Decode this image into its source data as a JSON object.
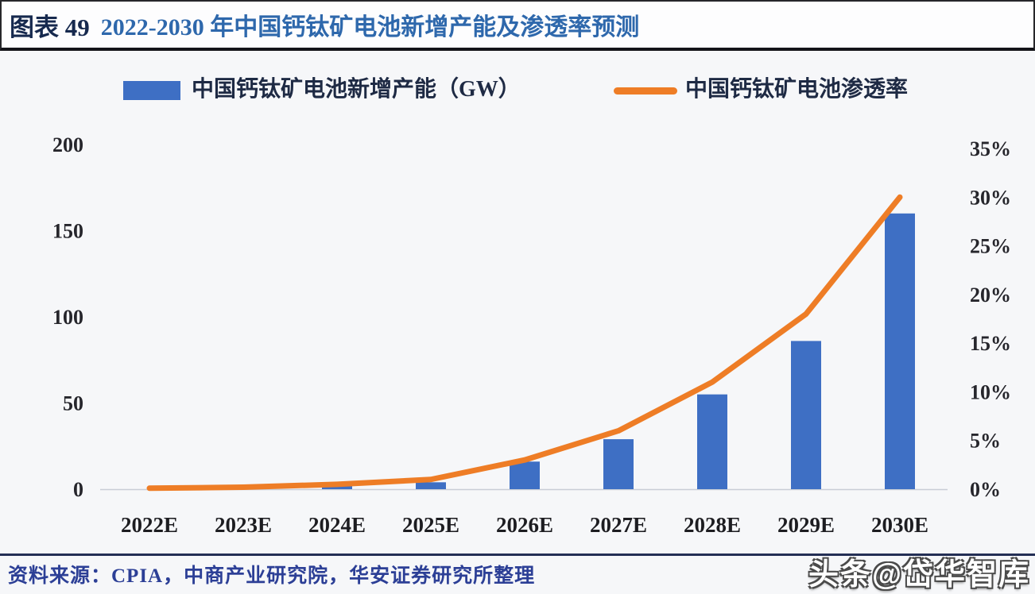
{
  "header": {
    "figure_label": "图表 49",
    "title": "2022-2030 年中国钙钛矿电池新增产能及渗透率预测"
  },
  "legend": {
    "items": [
      {
        "label": "中国钙钛矿电池新增产能（GW）",
        "swatch": "bar",
        "color": "#3E6FC4"
      },
      {
        "label": "中国钙钛矿电池渗透率",
        "swatch": "line",
        "color": "#EE7D26"
      }
    ]
  },
  "chart_data": {
    "type": "bar",
    "subtype": "combo bar+line, dual axis",
    "categories": [
      "2022E",
      "2023E",
      "2024E",
      "2025E",
      "2026E",
      "2027E",
      "2028E",
      "2029E",
      "2030E"
    ],
    "series": [
      {
        "name": "中国钙钛矿电池新增产能（GW）",
        "type": "bar",
        "axis": "left",
        "unit": "GW",
        "color": "#3E6FC4",
        "values": [
          0,
          0,
          2,
          4,
          16,
          29,
          55,
          86,
          160
        ]
      },
      {
        "name": "中国钙钛矿电池渗透率",
        "type": "line",
        "axis": "right",
        "unit": "%",
        "color": "#EE7D26",
        "values": [
          0.1,
          0.2,
          0.5,
          1,
          3,
          6,
          11,
          18,
          30
        ]
      }
    ],
    "left_axis": {
      "min": 0,
      "max": 200,
      "ticks": [
        "0",
        "50",
        "100",
        "150",
        "200"
      ]
    },
    "right_axis": {
      "min": 0,
      "max": 35,
      "ticks": [
        "0%",
        "5%",
        "10%",
        "15%",
        "20%",
        "25%",
        "30%",
        "35%"
      ]
    },
    "grid": false,
    "legend_position": "top"
  },
  "footer": {
    "source": "资料来源：CPIA，中商产业研究院，华安证券研究所整理",
    "watermark": "头条@岱华智库"
  },
  "colors": {
    "bar_blue": "#3E6FC4",
    "line_orange": "#EE7D26",
    "title_navy": "#16294E",
    "title_blue": "#2E68AC",
    "axis_text": "#26262C",
    "source_navy": "#2C3F96",
    "footer_rule_navy": "#232F55",
    "axis_line_gray": "#C9CED6"
  }
}
